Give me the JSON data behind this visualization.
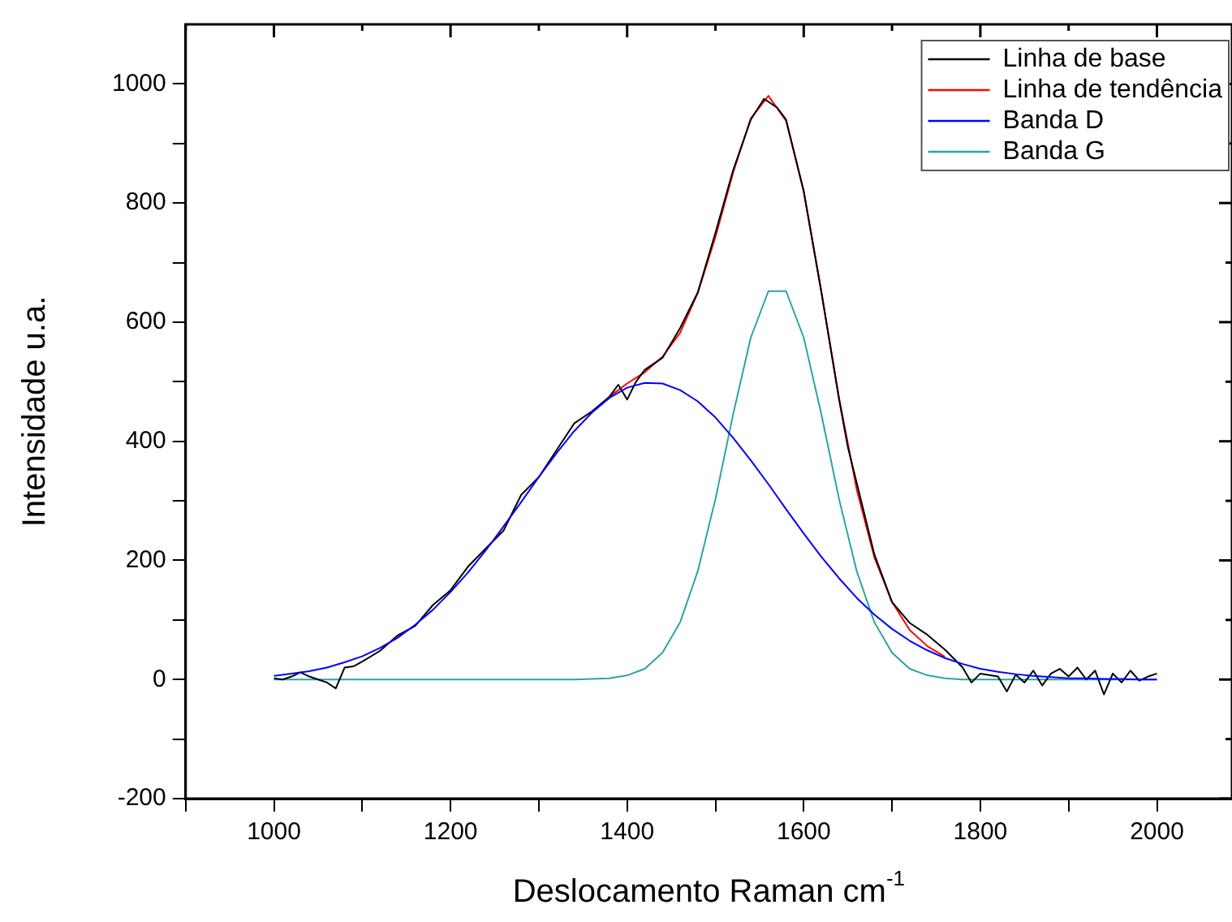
{
  "chart_data": {
    "type": "line",
    "xlabel": "Deslocamento Raman cm$^{-1}$",
    "ylabel": "Intensidade u.a.",
    "xlim": [
      900,
      2085
    ],
    "ylim": [
      -200,
      1100
    ],
    "xticks": [
      {
        "value": 900,
        "label": null
      },
      1000,
      {
        "value": 1100,
        "label": null
      },
      1200,
      {
        "value": 1300,
        "label": null
      },
      1400,
      {
        "value": 1500,
        "label": null
      },
      1600,
      {
        "value": 1700,
        "label": null
      },
      1800,
      {
        "value": 1900,
        "label": null
      },
      2000
    ],
    "yticks": [
      -200,
      {
        "value": -100,
        "label": null
      },
      0,
      {
        "value": 100,
        "label": null
      },
      200,
      {
        "value": 300,
        "label": null
      },
      400,
      {
        "value": 500,
        "label": null
      },
      600,
      {
        "value": 700,
        "label": null
      },
      800,
      {
        "value": 900,
        "label": null
      },
      1000
    ],
    "grid": false,
    "legend": "top right",
    "marker": "none",
    "line_style": "solid",
    "series": [
      {
        "name": "Linha de base",
        "color": "#000000",
        "x": [
          1000,
          1010,
          1020,
          1030,
          1040,
          1050,
          1060,
          1070,
          1080,
          1090,
          1100,
          1120,
          1140,
          1160,
          1180,
          1200,
          1220,
          1240,
          1260,
          1280,
          1300,
          1320,
          1340,
          1360,
          1380,
          1390,
          1400,
          1410,
          1420,
          1440,
          1460,
          1480,
          1500,
          1520,
          1540,
          1555,
          1570,
          1580,
          1600,
          1620,
          1640,
          1650,
          1660,
          1680,
          1700,
          1720,
          1740,
          1760,
          1780,
          1790,
          1800,
          1820,
          1830,
          1840,
          1850,
          1860,
          1870,
          1880,
          1890,
          1900,
          1910,
          1920,
          1930,
          1940,
          1950,
          1960,
          1970,
          1980,
          1990,
          2000
        ],
        "values": [
          2,
          0,
          5,
          12,
          5,
          0,
          -5,
          -15,
          20,
          22,
          30,
          48,
          74,
          90,
          125,
          150,
          190,
          220,
          250,
          310,
          340,
          385,
          430,
          450,
          475,
          495,
          470,
          500,
          520,
          540,
          590,
          650,
          750,
          855,
          940,
          975,
          960,
          940,
          820,
          650,
          470,
          390,
          330,
          210,
          130,
          95,
          75,
          50,
          20,
          -5,
          10,
          5,
          -20,
          8,
          -5,
          15,
          -10,
          10,
          18,
          5,
          20,
          0,
          15,
          -25,
          10,
          -5,
          15,
          -2,
          5,
          10
        ]
      },
      {
        "name": "Linha de tendência",
        "color": "#ff0000",
        "x": [
          1380,
          1400,
          1420,
          1440,
          1460,
          1480,
          1500,
          1520,
          1540,
          1560,
          1580,
          1600,
          1620,
          1640,
          1660,
          1680,
          1700,
          1720,
          1740,
          1760
        ],
        "values": [
          475,
          497,
          516,
          542,
          582,
          649,
          743,
          851,
          942,
          980,
          938,
          819,
          651,
          473,
          319,
          205,
          130,
          83,
          56,
          38
        ]
      },
      {
        "name": "Banda D",
        "color": "#0000ff",
        "x": [
          1000,
          1020,
          1040,
          1060,
          1080,
          1100,
          1120,
          1140,
          1160,
          1180,
          1200,
          1220,
          1240,
          1260,
          1280,
          1300,
          1320,
          1340,
          1360,
          1380,
          1400,
          1420,
          1440,
          1460,
          1480,
          1500,
          1520,
          1540,
          1560,
          1580,
          1600,
          1620,
          1640,
          1660,
          1680,
          1700,
          1720,
          1740,
          1760,
          1780,
          1800,
          1820,
          1840,
          1860,
          1880,
          1900,
          1920,
          1940,
          1960,
          1980,
          2000
        ],
        "values": [
          6,
          10,
          14,
          20,
          29,
          39,
          53,
          70,
          92,
          117,
          147,
          180,
          217,
          257,
          298,
          340,
          380,
          417,
          448,
          473,
          490,
          498,
          497,
          486,
          467,
          440,
          406,
          368,
          328,
          286,
          245,
          206,
          170,
          137,
          109,
          85,
          65,
          49,
          36,
          26,
          18,
          13,
          9,
          6,
          4,
          2,
          2,
          1,
          1,
          0,
          0
        ]
      },
      {
        "name": "Banda G",
        "color": "#2ca3a3",
        "x": [
          1000,
          1100,
          1200,
          1300,
          1340,
          1360,
          1380,
          1400,
          1420,
          1440,
          1460,
          1480,
          1500,
          1520,
          1540,
          1560,
          1580,
          1600,
          1620,
          1640,
          1660,
          1680,
          1700,
          1720,
          1740,
          1760,
          1780,
          1800,
          1900,
          2000
        ],
        "values": [
          0,
          0,
          0,
          0,
          0,
          1,
          2,
          7,
          18,
          45,
          96,
          182,
          303,
          445,
          574,
          652,
          652,
          574,
          445,
          303,
          182,
          96,
          45,
          18,
          7,
          2,
          0,
          0,
          0,
          0
        ]
      }
    ]
  }
}
